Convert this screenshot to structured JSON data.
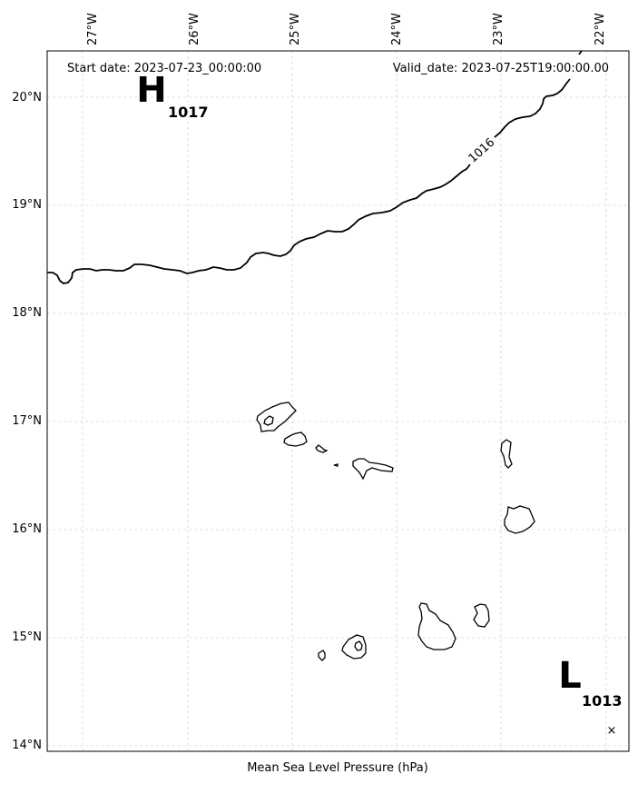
{
  "map": {
    "start_date": "Start date: 2023-07-23_00:00:00",
    "valid_date": "Valid_date: 2023-07-25T19:00:00.00",
    "xlabel": "Mean Sea Level Pressure (hPa)",
    "lon_ticks": [
      "27°W",
      "26°W",
      "25°W",
      "24°W",
      "23°W",
      "22°W"
    ],
    "lat_ticks": [
      "20°N",
      "19°N",
      "18°N",
      "17°N",
      "16°N",
      "15°N",
      "14°N"
    ],
    "high": {
      "letter": "H",
      "value": "1017"
    },
    "low": {
      "letter": "L",
      "value": "1013",
      "marker": "×"
    },
    "isobar_label": "1016"
  }
}
